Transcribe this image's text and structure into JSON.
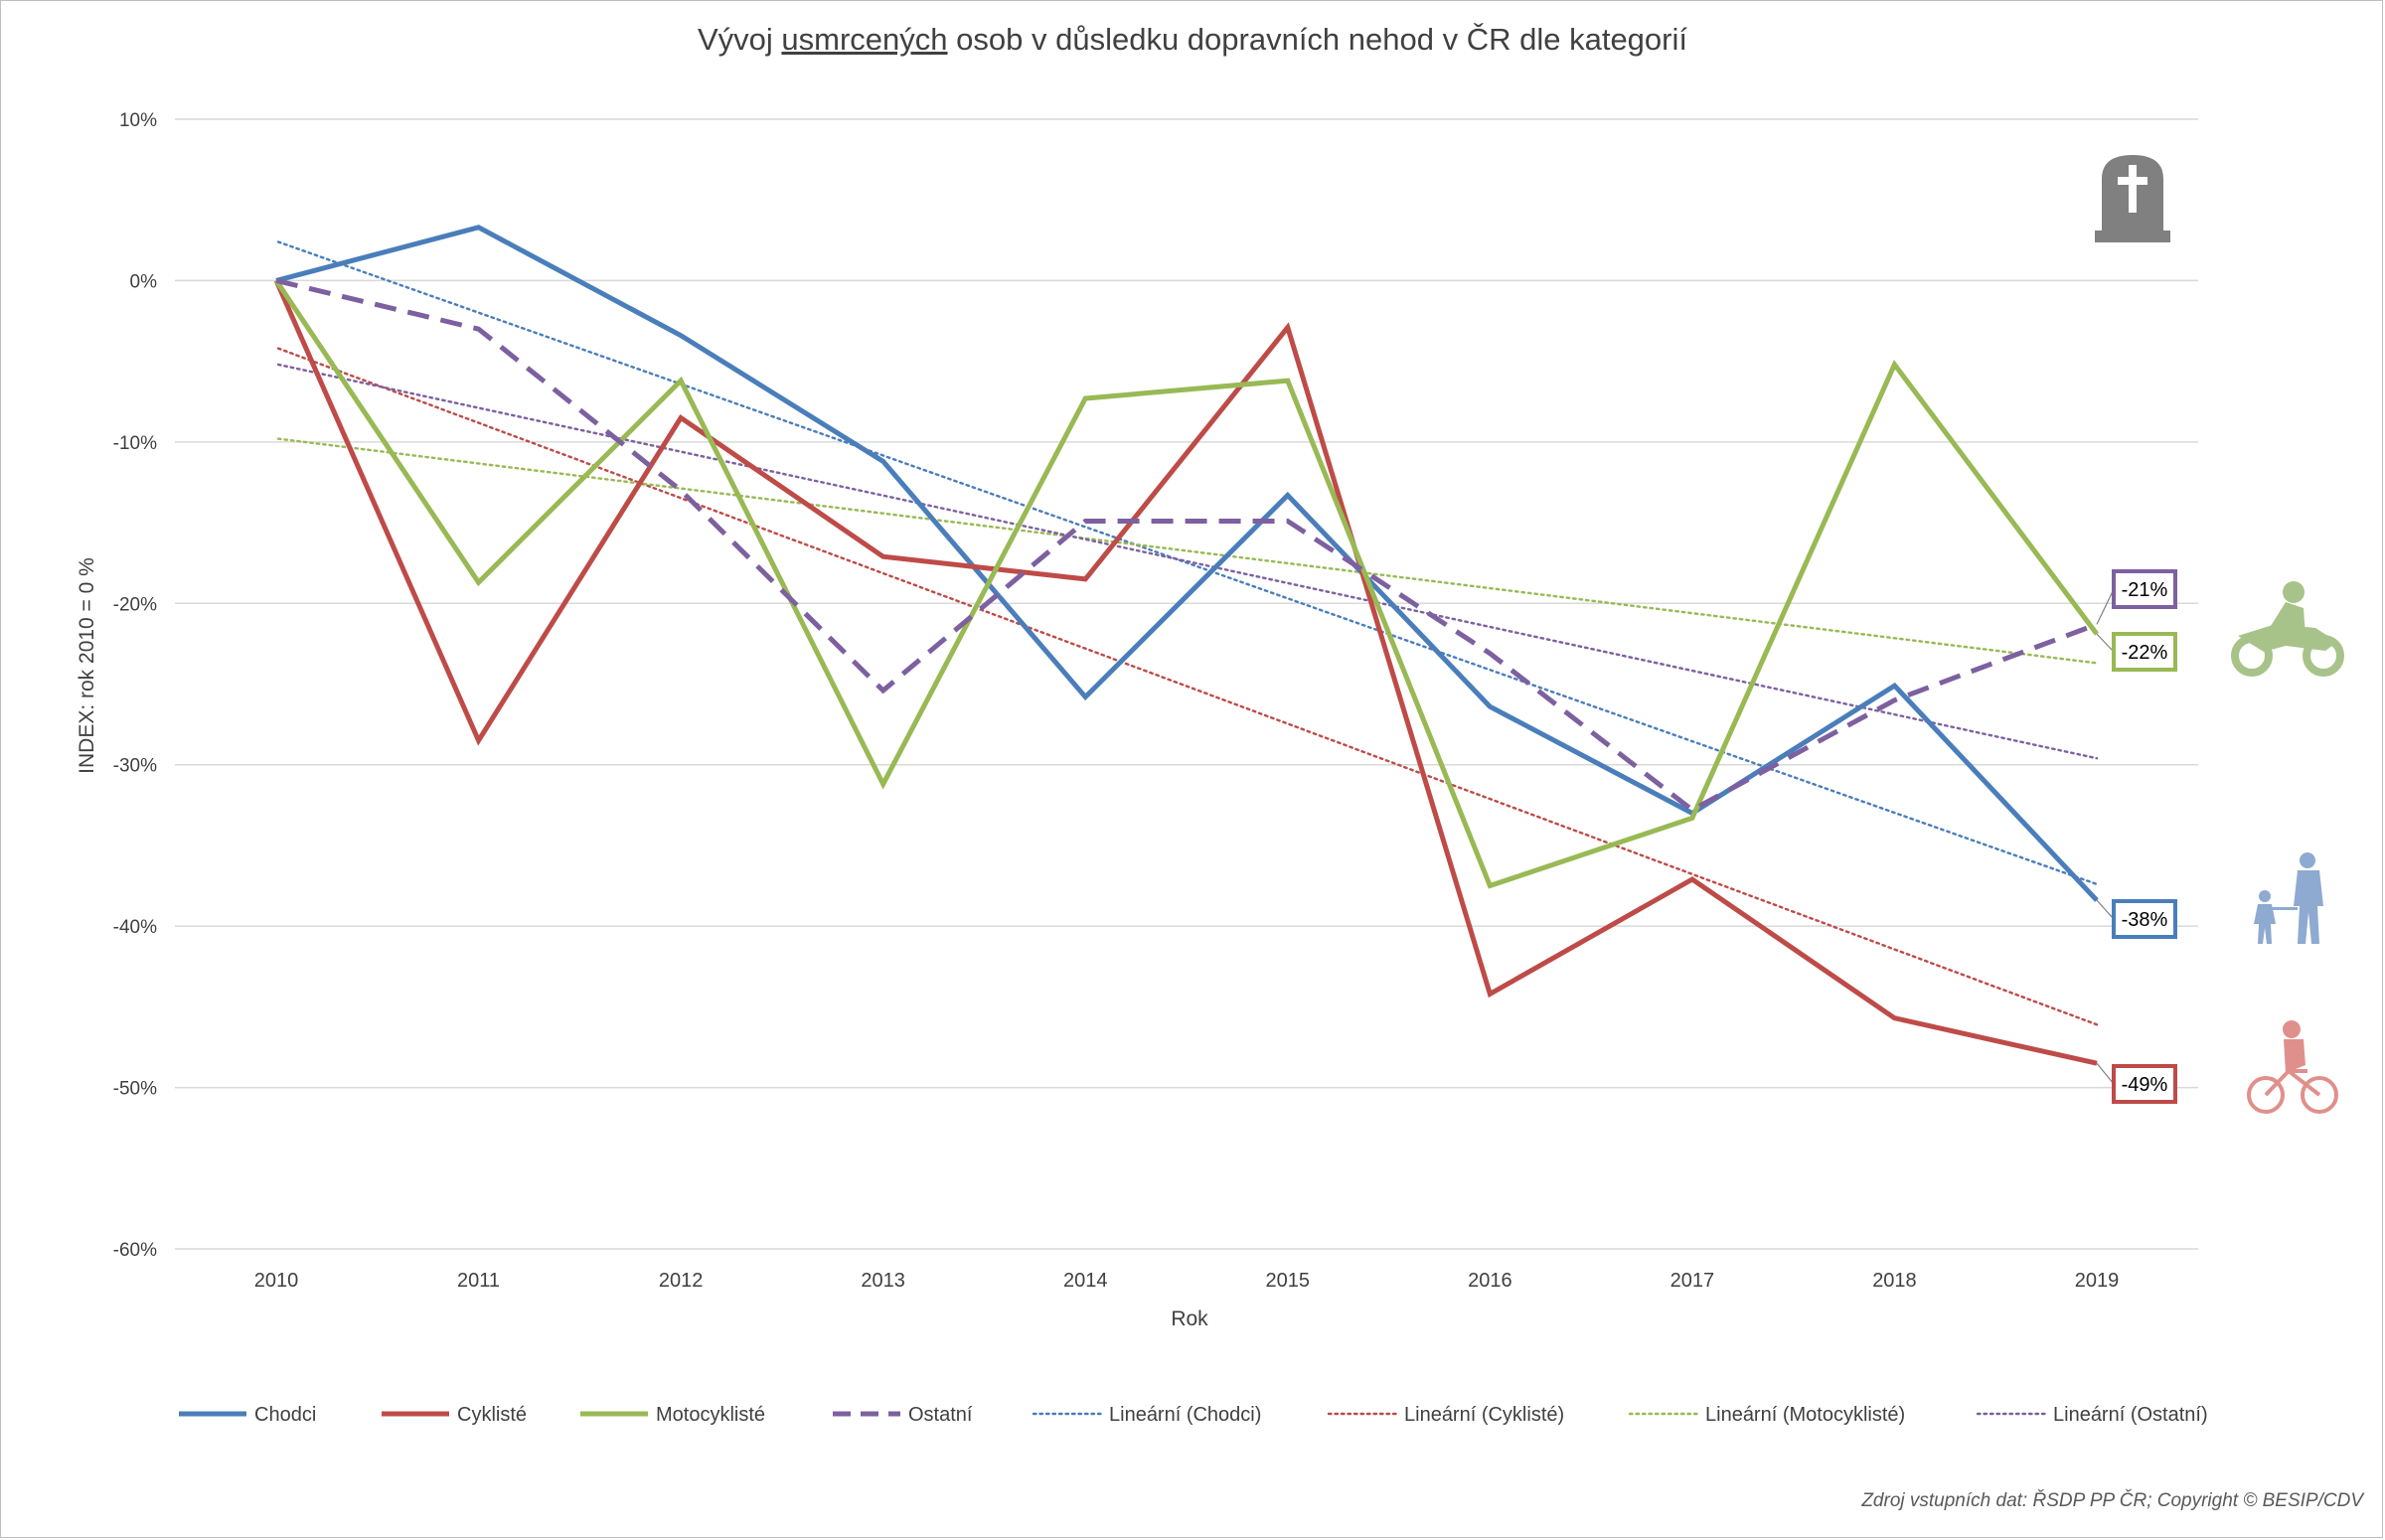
{
  "title": {
    "prefix": "Vývoj ",
    "underlined": "usmrcených",
    "suffix": " osob v důsledku dopravních nehod v ČR dle kategorií"
  },
  "source": "Zdroj vstupních dat: ŘSDP PP ČR; Copyright © BESIP/CDV",
  "chart_data": {
    "type": "line",
    "title": "Vývoj usmrcených osob v důsledku dopravních nehod v ČR dle kategorií",
    "xlabel": "Rok",
    "ylabel": "INDEX: rok 2010 = 0 %",
    "ylim": [
      -60,
      10
    ],
    "yticks": [
      10,
      0,
      -10,
      -20,
      -30,
      -40,
      -50,
      -60
    ],
    "ytick_labels": [
      "10%",
      "0%",
      "-10%",
      "-20%",
      "-30%",
      "-40%",
      "-50%",
      "-60%"
    ],
    "categories": [
      "2010",
      "2011",
      "2012",
      "2013",
      "2014",
      "2015",
      "2016",
      "2017",
      "2018",
      "2019"
    ],
    "grid": true,
    "legend": "bottom",
    "series": [
      {
        "name": "Chodci",
        "color": "#4a7ebb",
        "style": "solid",
        "values": [
          0,
          3.3,
          -3.4,
          -11.2,
          -25.8,
          -13.3,
          -26.4,
          -33.0,
          -25.1,
          -38.4
        ],
        "end_label": "-38%"
      },
      {
        "name": "Cyklisté",
        "color": "#be4b48",
        "style": "solid",
        "values": [
          0,
          -28.5,
          -8.5,
          -17.1,
          -18.5,
          -2.9,
          -44.2,
          -37.1,
          -45.7,
          -48.5
        ],
        "end_label": "-49%"
      },
      {
        "name": "Motocyklisté",
        "color": "#98b954",
        "style": "solid",
        "values": [
          0,
          -18.7,
          -6.2,
          -31.2,
          -7.3,
          -6.2,
          -37.5,
          -33.3,
          -5.2,
          -21.9
        ],
        "end_label": "-22%"
      },
      {
        "name": "Ostatní",
        "color": "#7d60a0",
        "style": "dashed",
        "values": [
          0,
          -3.0,
          -13.0,
          -25.4,
          -14.9,
          -14.9,
          -23.1,
          -32.8,
          -26.0,
          -21.3
        ],
        "end_label": "-21%"
      }
    ],
    "trendlines": [
      {
        "name": "Lineární (Chodci)",
        "color": "#4a7ebb",
        "start": 2.4,
        "end": -37.4
      },
      {
        "name": "Lineární (Cyklisté)",
        "color": "#be4b48",
        "start": -4.2,
        "end": -46.1
      },
      {
        "name": "Lineární (Motocyklisté)",
        "color": "#98b954",
        "start": -9.8,
        "end": -23.7
      },
      {
        "name": "Lineární (Ostatní)",
        "color": "#7d60a0",
        "start": -5.2,
        "end": -29.6
      }
    ]
  },
  "icons": {
    "grave": "grave-icon",
    "motorcycle": "motorcyclist-icon",
    "pedestrian": "pedestrians-icon",
    "cyclist": "cyclist-icon"
  }
}
